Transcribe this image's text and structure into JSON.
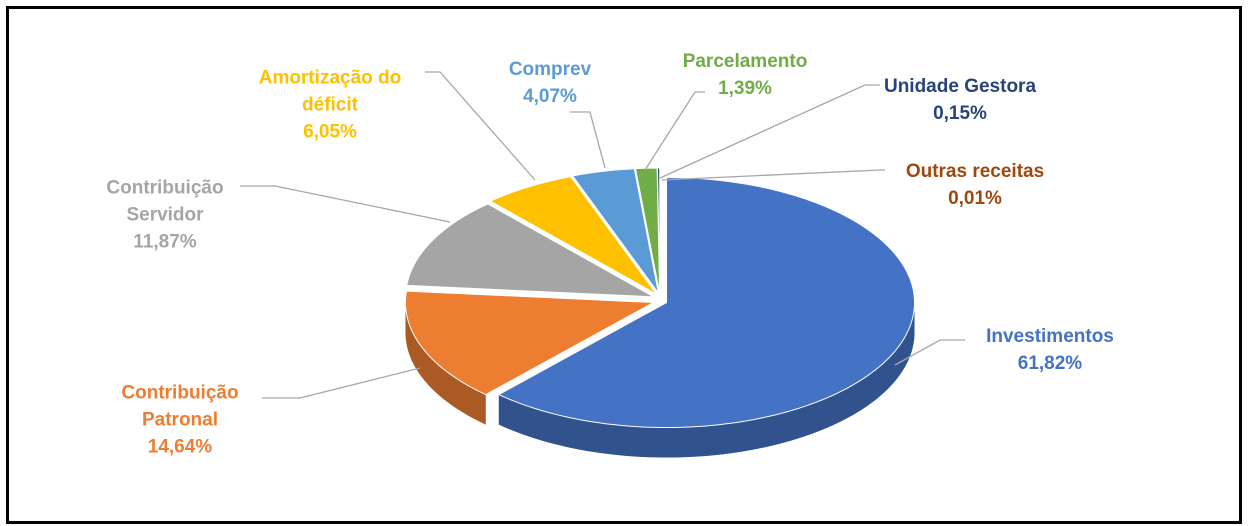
{
  "chart_data": {
    "type": "pie",
    "categories": [
      "Investimentos",
      "Contribuição Patronal",
      "Contribuição Servidor",
      "Amortização do déficit",
      "Comprev",
      "Parcelamento",
      "Unidade Gestora",
      "Outras receitas"
    ],
    "values": [
      61.82,
      14.64,
      11.87,
      6.05,
      4.07,
      1.39,
      0.15,
      0.01
    ],
    "value_labels": [
      "61,82%",
      "14,64%",
      "11,87%",
      "6,05%",
      "4,07%",
      "1,39%",
      "0,15%",
      "0,01%"
    ],
    "colors": [
      "#4472c4",
      "#ed7d31",
      "#a5a5a5",
      "#ffc000",
      "#5b9bd5",
      "#70ad47",
      "#264478",
      "#9e480e"
    ]
  }
}
